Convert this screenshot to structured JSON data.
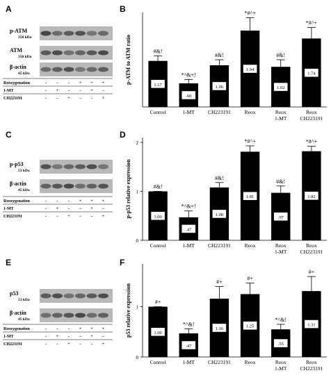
{
  "panels": {
    "A": {
      "letter": "A"
    },
    "B": {
      "letter": "B"
    },
    "C": {
      "letter": "C"
    },
    "D": {
      "letter": "D"
    },
    "E": {
      "letter": "E"
    },
    "F": {
      "letter": "F"
    }
  },
  "blots": [
    {
      "id": "A",
      "bands": [
        {
          "name": "p-ATM",
          "kda": "350 kDa"
        },
        {
          "name": "ATM",
          "kda": "350 kDa"
        },
        {
          "name": "β-actin",
          "kda": "45 kDa"
        }
      ],
      "conditions": [
        {
          "label": "Reoxygenation",
          "values": [
            "-",
            "-",
            "-",
            "+",
            "+",
            "+"
          ]
        },
        {
          "label": "1-MT",
          "values": [
            "-",
            "+",
            "-",
            "-",
            "+",
            "-"
          ]
        },
        {
          "label": "CH223191",
          "values": [
            "-",
            "-",
            "+",
            "-",
            "-",
            "+"
          ]
        }
      ]
    },
    {
      "id": "C",
      "bands": [
        {
          "name": "p-p53",
          "kda": "53 kDa"
        },
        {
          "name": "β-actin",
          "kda": "45 kDa"
        }
      ],
      "conditions": [
        {
          "label": "Reoxygenation",
          "values": [
            "-",
            "-",
            "-",
            "+",
            "+",
            "+"
          ]
        },
        {
          "label": "1-MT",
          "values": [
            "-",
            "+",
            "-",
            "-",
            "+",
            "-"
          ]
        },
        {
          "label": "CH223191",
          "values": [
            "-",
            "-",
            "+",
            "-",
            "-",
            "+"
          ]
        }
      ]
    },
    {
      "id": "E",
      "bands": [
        {
          "name": "p53",
          "kda": "53 kDa"
        },
        {
          "name": "β-actin",
          "kda": "45 kDa"
        }
      ],
      "conditions": [
        {
          "label": "Reoxygenation",
          "values": [
            "-",
            "-",
            "-",
            "+",
            "+",
            "+"
          ]
        },
        {
          "label": "1-MT",
          "values": [
            "-",
            "+",
            "-",
            "-",
            "+",
            "-"
          ]
        },
        {
          "label": "CH223191",
          "values": [
            "-",
            "-",
            "+",
            "-",
            "-",
            "+"
          ]
        }
      ]
    }
  ],
  "chart_data": [
    {
      "panel": "B",
      "type": "bar",
      "ylabel": "p-ATM to ATM ratio",
      "categories": [
        [
          "Control"
        ],
        [
          "1-MT"
        ],
        [
          "CH223191"
        ],
        [
          "Reox"
        ],
        [
          "Reox",
          "1-MT"
        ],
        [
          "Reox",
          "CH223191"
        ]
      ],
      "values": [
        1.17,
        0.6,
        1.06,
        1.94,
        1.02,
        1.74
      ],
      "value_labels": [
        "1.17",
        ".60",
        "1.06",
        "1.94",
        "1.02",
        "1.74"
      ],
      "errors": [
        0.13,
        0.1,
        0.14,
        0.33,
        0.18,
        0.28
      ],
      "annotations": [
        "#&!",
        "*^&+!",
        "#&!",
        "*#^+",
        "#&!",
        "*#^+"
      ],
      "ylim": [
        0,
        2.4
      ],
      "colors": {
        "bar": "#000000"
      }
    },
    {
      "panel": "D",
      "type": "bar",
      "ylabel": "p-p53 relative expression",
      "categories": [
        [
          "Control"
        ],
        [
          "1-MT"
        ],
        [
          "CH223191"
        ],
        [
          "Reox"
        ],
        [
          "Reox",
          "1-MT"
        ],
        [
          "Reox",
          "CH223191"
        ]
      ],
      "values": [
        1.0,
        0.47,
        1.08,
        1.81,
        0.97,
        1.82
      ],
      "value_labels": [
        "1.00",
        ".47",
        "1.08",
        "1.81",
        ".97",
        "1.82"
      ],
      "errors": [
        0.0,
        0.13,
        0.1,
        0.12,
        0.14,
        0.1
      ],
      "annotations": [
        "#&!",
        "*^&+!",
        "#&!",
        "*#^+",
        "#&!",
        "*#^+"
      ],
      "yticks": [
        0,
        1,
        2
      ],
      "ylim": [
        0,
        2.1
      ],
      "colors": {
        "bar": "#000000"
      }
    },
    {
      "panel": "F",
      "type": "bar",
      "ylabel": "p53 relative expression",
      "categories": [
        [
          "Control"
        ],
        [
          "1-MT"
        ],
        [
          "CH223191"
        ],
        [
          "Reox"
        ],
        [
          "Reox",
          "1-MT"
        ],
        [
          "Reox",
          "CH223191"
        ]
      ],
      "values": [
        1.0,
        0.47,
        1.16,
        1.25,
        0.55,
        1.31
      ],
      "value_labels": [
        "1.00",
        ".47",
        "1.16",
        "1.25",
        ".55",
        "1.31"
      ],
      "errors": [
        0.0,
        0.09,
        0.24,
        0.22,
        0.1,
        0.29
      ],
      "annotations": [
        "#+",
        "*^&!",
        "#+",
        "#+",
        "*^&!",
        "#+"
      ],
      "yticks": [
        0,
        1
      ],
      "ylim": [
        0,
        1.85
      ],
      "colors": {
        "bar": "#000000"
      }
    }
  ]
}
